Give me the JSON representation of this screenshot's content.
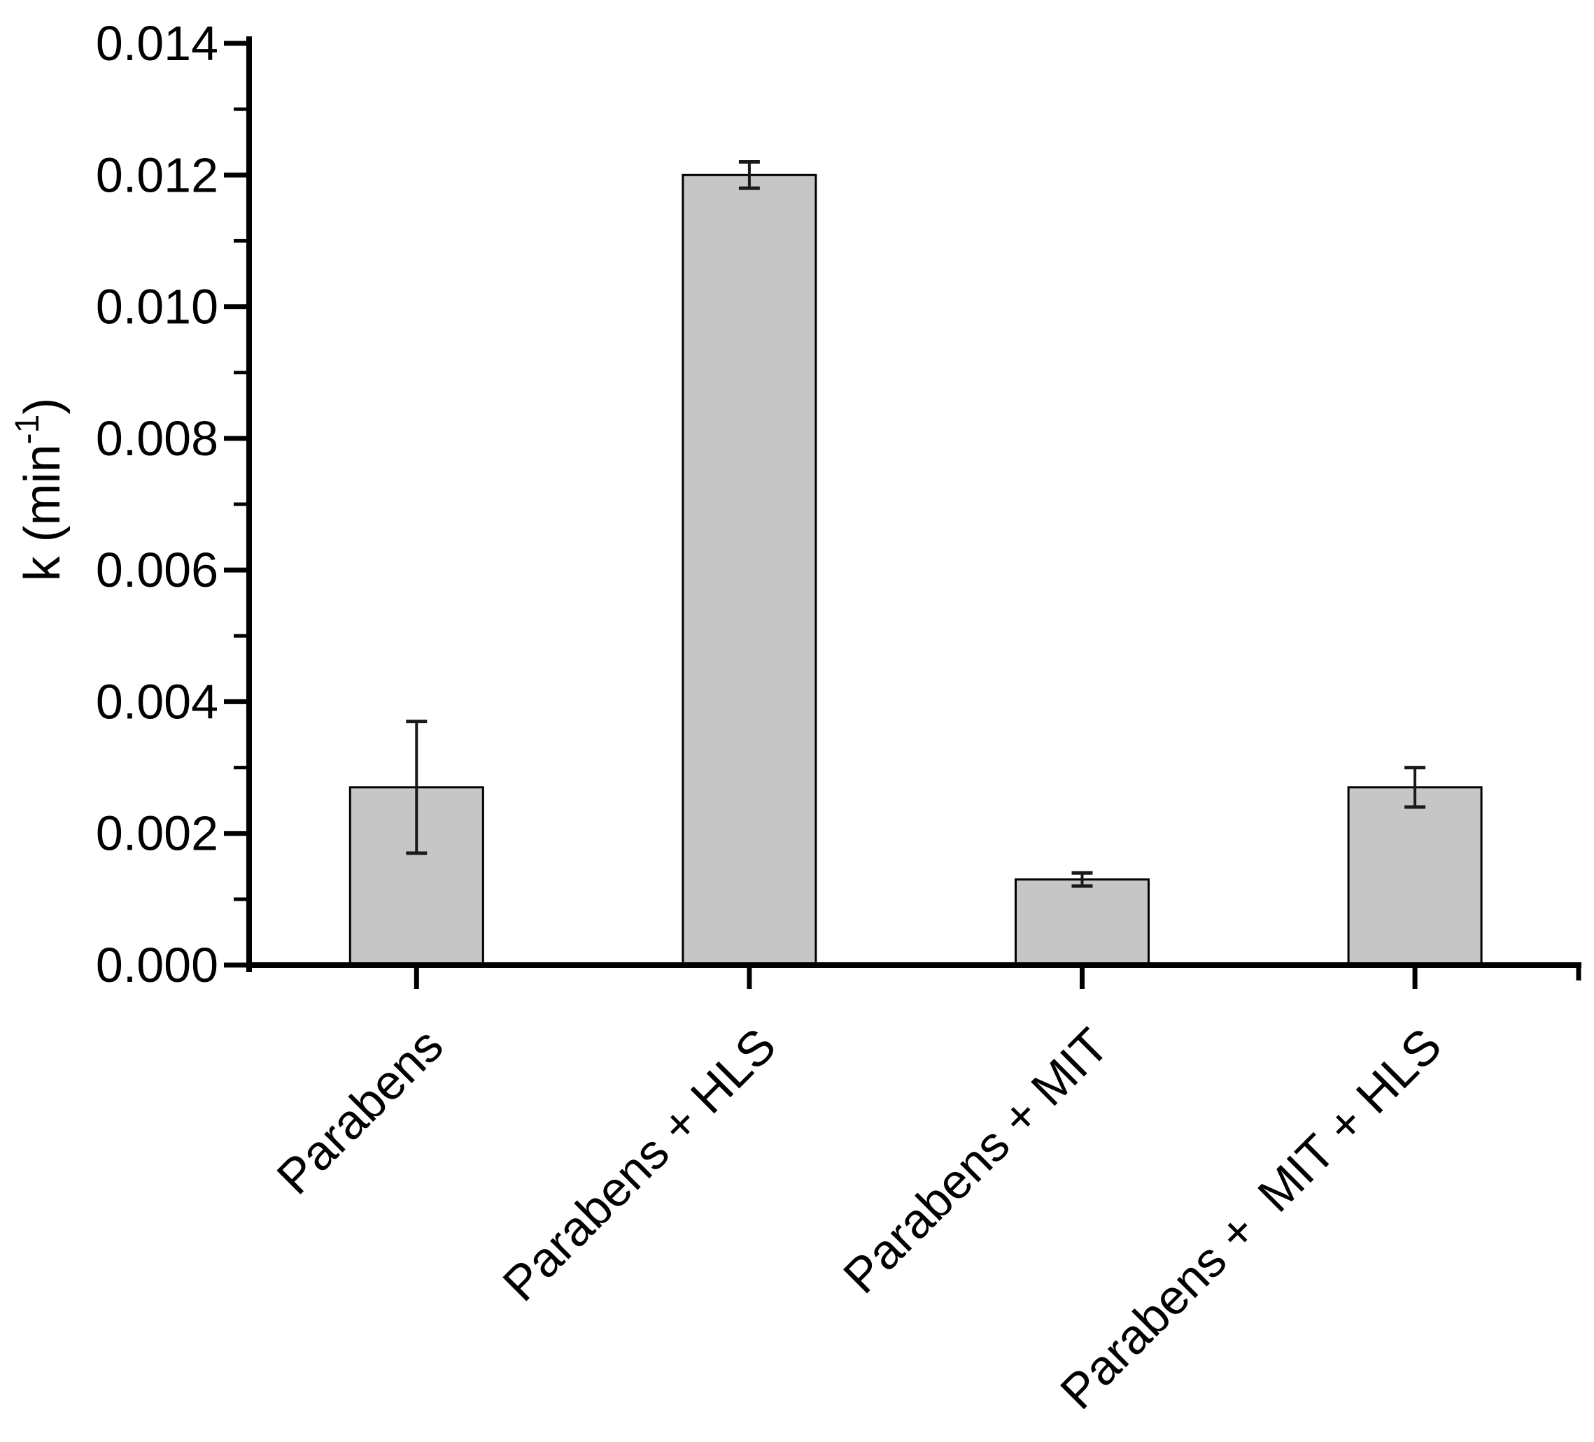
{
  "figure": {
    "background": "#ffffff"
  },
  "chart_data": {
    "type": "bar",
    "title": "",
    "categories": [
      "Parabens",
      "Parabens + HLS",
      "Parabens + MIT",
      "Parabens +  MIT + HLS"
    ],
    "values": [
      0.0027,
      0.012,
      0.0013,
      0.0027
    ],
    "errors": [
      0.001,
      0.0002,
      0.0001,
      0.0003
    ],
    "ylabel": "k (min⁻¹)",
    "ylabel_parts": {
      "main": "k (min",
      "sup": "-1",
      "close": ")"
    },
    "ylim": [
      0,
      0.014
    ],
    "ytick_step": 0.002,
    "ytick_labels": [
      "0.000",
      "0.002",
      "0.004",
      "0.006",
      "0.008",
      "0.010",
      "0.012",
      "0.014"
    ],
    "minor_ticks_between_majors": 1,
    "grid": false,
    "legend": null,
    "xlabel": "",
    "x_tick_label_rotation_deg": -45,
    "colors": {
      "bar_fill": "#c6c6c6",
      "bar_edge": "#000000",
      "axis": "#000000",
      "error_bar": "#1a1a1a",
      "text": "#000000"
    }
  }
}
